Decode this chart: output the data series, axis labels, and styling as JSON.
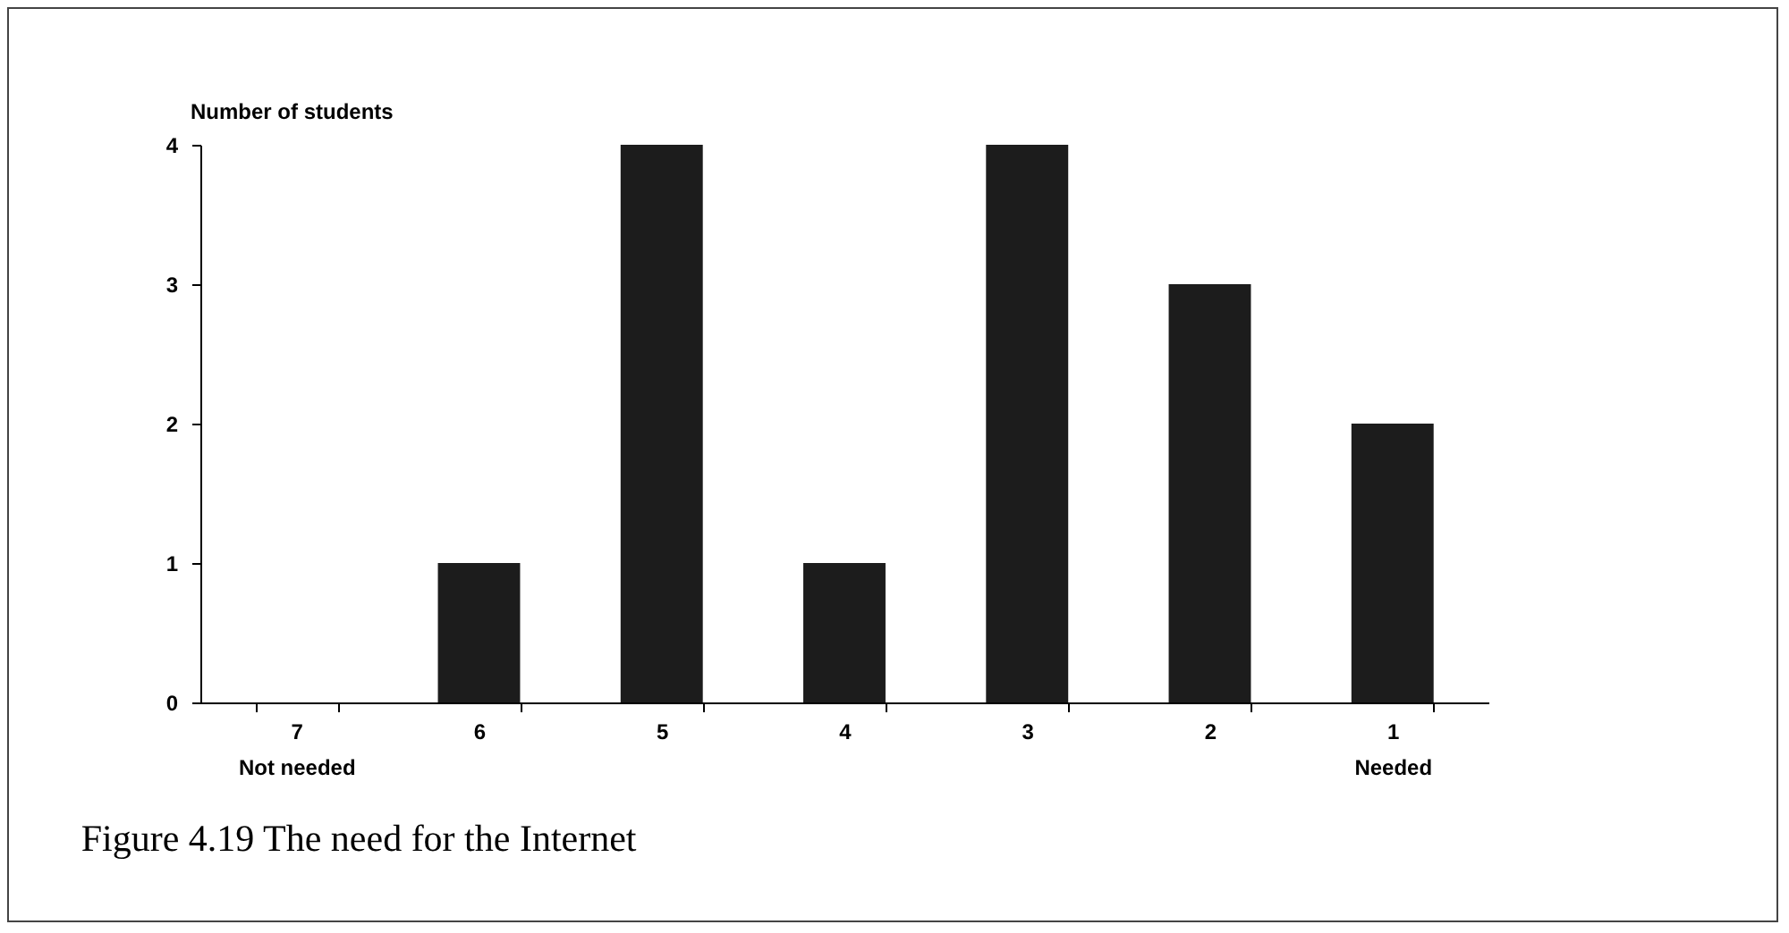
{
  "chart_data": {
    "type": "bar",
    "ylabel": "Number of students",
    "categories": [
      "7\nNot needed",
      "6",
      "5",
      "4",
      "3",
      "2",
      "1\nNeeded"
    ],
    "values": [
      0,
      1,
      4,
      1,
      4,
      3,
      2
    ],
    "color": "#1c1c1c",
    "ylim": [
      0,
      4
    ],
    "yticks": [
      0,
      1,
      2,
      3,
      4
    ],
    "grid": false,
    "annotations": [
      "Figure 4.19  The need for the Internet"
    ]
  }
}
